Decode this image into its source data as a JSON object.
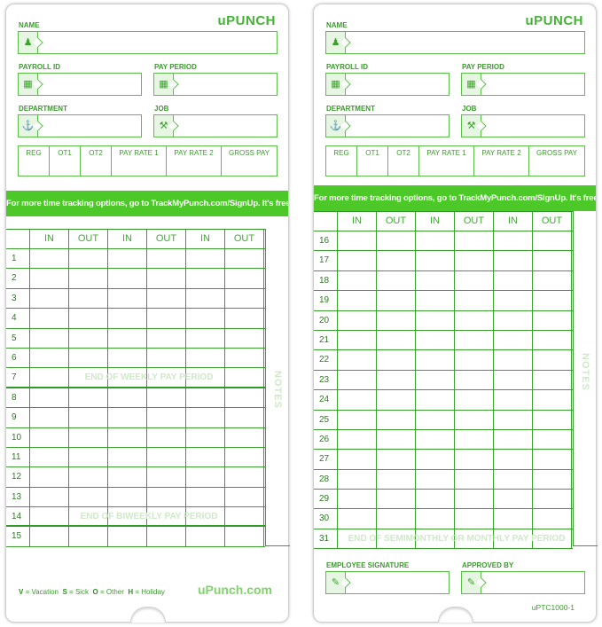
{
  "brand": {
    "logo": "uPUNCH",
    "site": "uPunch.com",
    "accent": "#4cc928"
  },
  "fields": {
    "name": "NAME",
    "payroll_id": "PAYROLL ID",
    "pay_period": "PAY PERIOD",
    "department": "DEPARTMENT",
    "job": "JOB"
  },
  "icons": {
    "name": "person-icon",
    "payroll_id": "id-badge-icon",
    "pay_period": "calendar-icon",
    "department": "org-chart-icon",
    "job": "tools-icon",
    "signature": "pencil-icon"
  },
  "summary": [
    "REG",
    "OT1",
    "OT2",
    "PAY RATE 1",
    "PAY RATE 2",
    "GROSS PAY"
  ],
  "banner": "For more time tracking options, go to TrackMyPunch.com/SignUp. It's free!",
  "columns": [
    "IN",
    "OUT",
    "IN",
    "OUT",
    "IN",
    "OUT"
  ],
  "notes": "NOTES",
  "left_card": {
    "rows": [
      1,
      2,
      3,
      4,
      5,
      6,
      7,
      8,
      9,
      10,
      11,
      12,
      13,
      14,
      15
    ],
    "watermarks": {
      "7": "END OF WEEKLY PAY PERIOD",
      "14": "END OF BIWEEKLY PAY PERIOD"
    }
  },
  "right_card": {
    "rows": [
      16,
      17,
      18,
      19,
      20,
      21,
      22,
      23,
      24,
      25,
      26,
      27,
      28,
      29,
      30,
      31
    ],
    "watermarks": {
      "31": "END OF SEMIMONTHLY OR MONTHLY PAY PERIOD"
    }
  },
  "legend": [
    {
      "key": "V",
      "label": "Vacation"
    },
    {
      "key": "S",
      "label": "Sick"
    },
    {
      "key": "O",
      "label": "Other"
    },
    {
      "key": "H",
      "label": "Holiday"
    }
  ],
  "signature": {
    "employee": "EMPLOYEE SIGNATURE",
    "approved": "APPROVED BY"
  },
  "code": "uPTC1000-1"
}
